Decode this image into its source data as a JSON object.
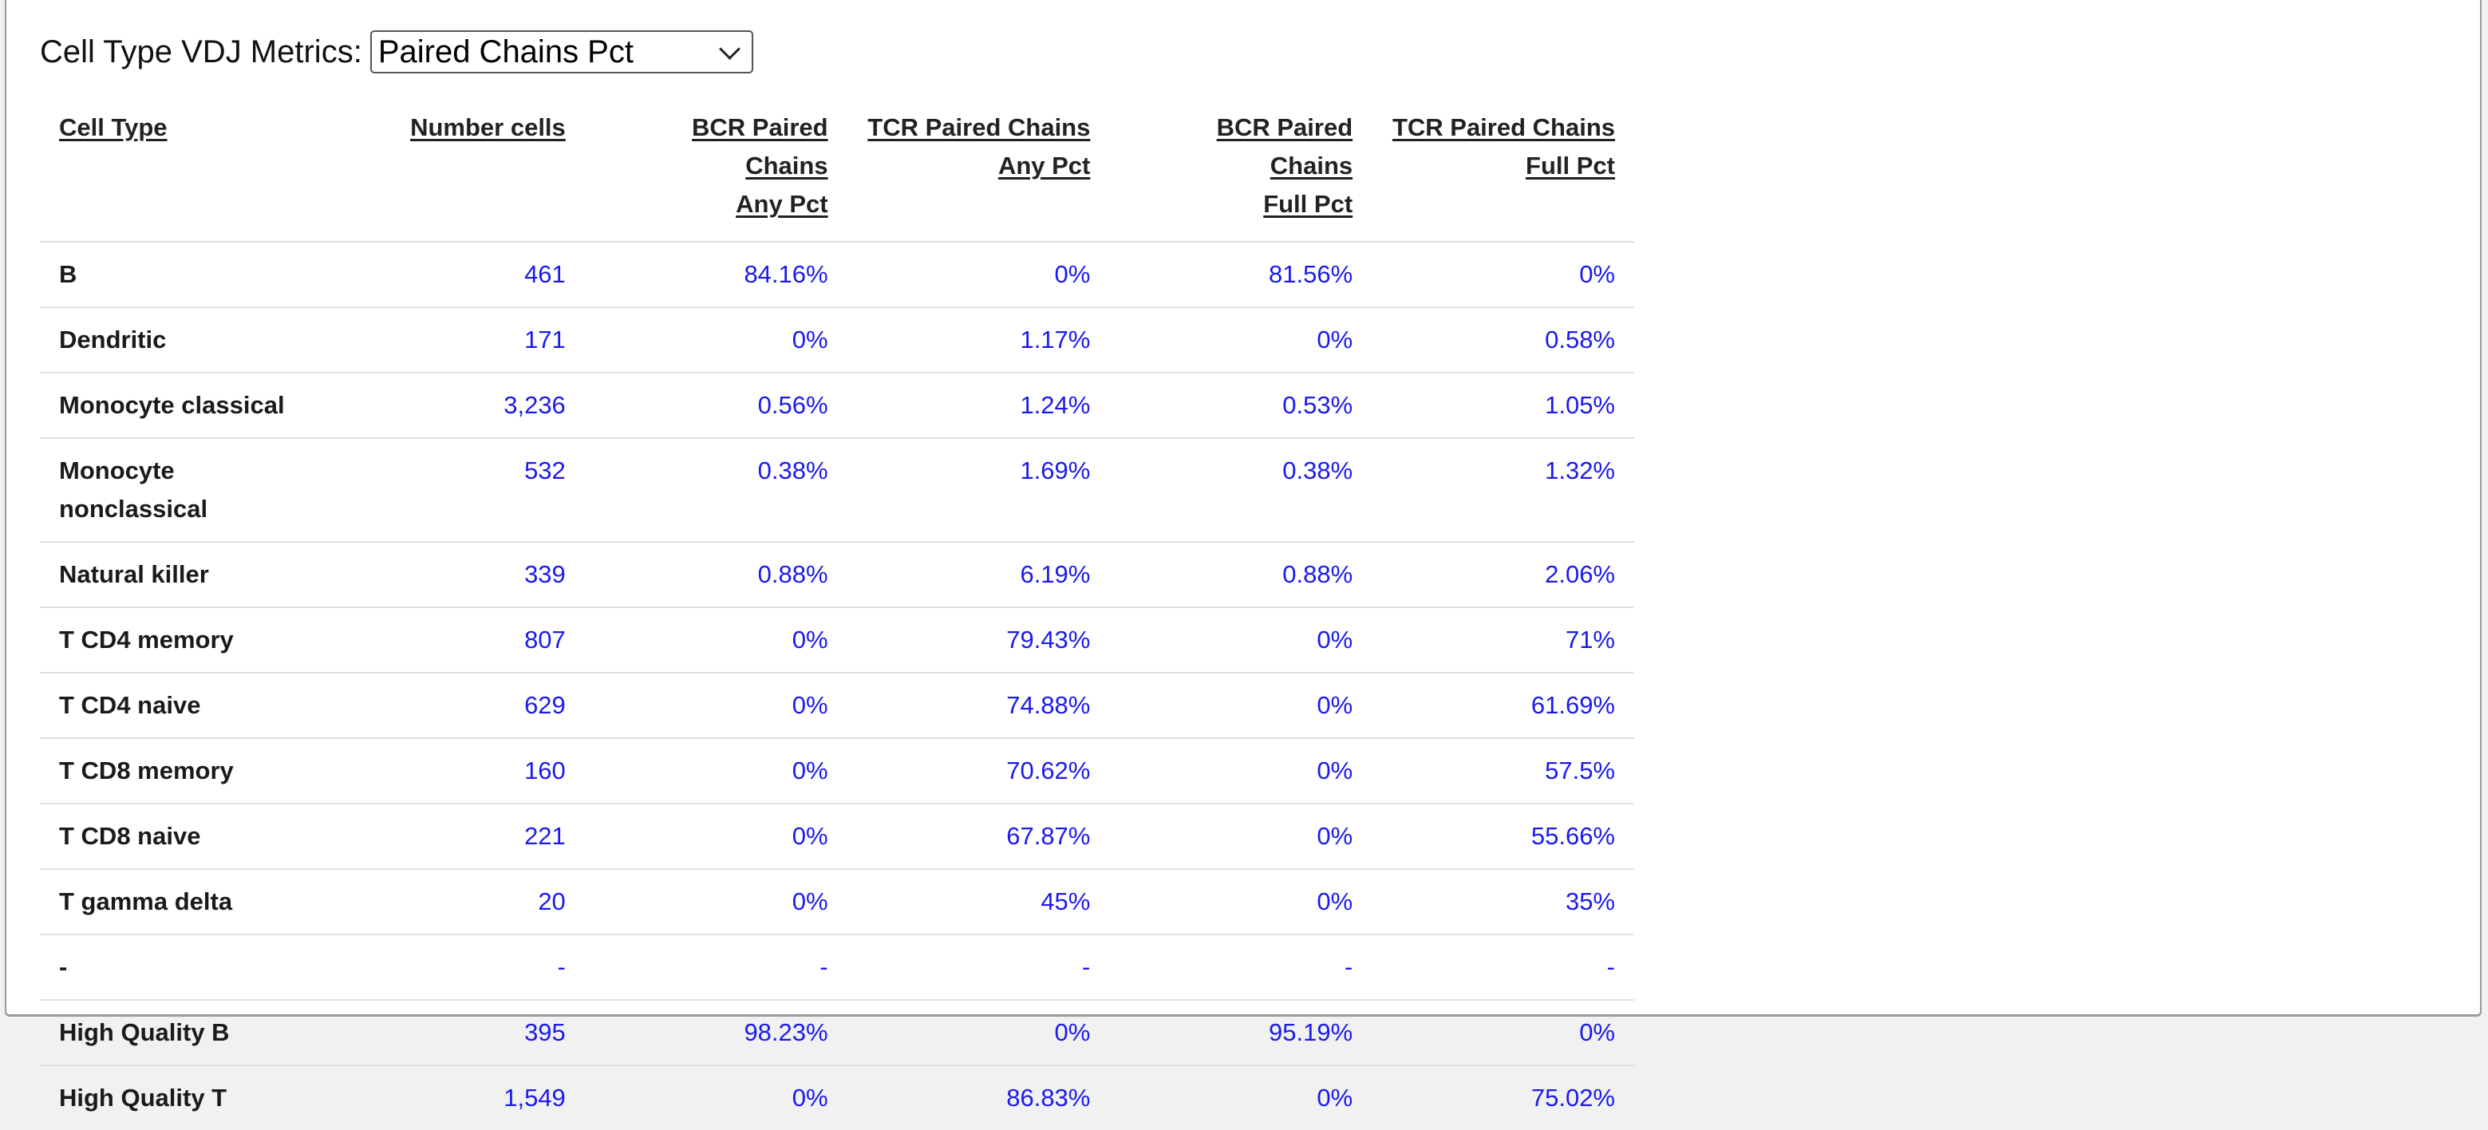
{
  "metric_selector": {
    "label": "Cell Type VDJ Metrics:",
    "selected": "Paired Chains Pct"
  },
  "table": {
    "headers": [
      {
        "line1": "Cell Type",
        "line2": ""
      },
      {
        "line1": "Number cells",
        "line2": ""
      },
      {
        "line1": "BCR Paired Chains",
        "line2": "Any Pct"
      },
      {
        "line1": "TCR Paired Chains",
        "line2": "Any Pct"
      },
      {
        "line1": "BCR Paired Chains",
        "line2": "Full Pct"
      },
      {
        "line1": "TCR Paired Chains",
        "line2": "Full Pct"
      }
    ],
    "rows": [
      {
        "type": "B",
        "cells": "461",
        "bcr_any": "84.16%",
        "tcr_any": "0%",
        "bcr_full": "81.56%",
        "tcr_full": "0%"
      },
      {
        "type": "Dendritic",
        "cells": "171",
        "bcr_any": "0%",
        "tcr_any": "1.17%",
        "bcr_full": "0%",
        "tcr_full": "0.58%"
      },
      {
        "type": "Monocyte classical",
        "cells": "3,236",
        "bcr_any": "0.56%",
        "tcr_any": "1.24%",
        "bcr_full": "0.53%",
        "tcr_full": "1.05%"
      },
      {
        "type": "Monocyte nonclassical",
        "cells": "532",
        "bcr_any": "0.38%",
        "tcr_any": "1.69%",
        "bcr_full": "0.38%",
        "tcr_full": "1.32%"
      },
      {
        "type": "Natural killer",
        "cells": "339",
        "bcr_any": "0.88%",
        "tcr_any": "6.19%",
        "bcr_full": "0.88%",
        "tcr_full": "2.06%"
      },
      {
        "type": "T CD4 memory",
        "cells": "807",
        "bcr_any": "0%",
        "tcr_any": "79.43%",
        "bcr_full": "0%",
        "tcr_full": "71%"
      },
      {
        "type": "T CD4 naive",
        "cells": "629",
        "bcr_any": "0%",
        "tcr_any": "74.88%",
        "bcr_full": "0%",
        "tcr_full": "61.69%"
      },
      {
        "type": "T CD8 memory",
        "cells": "160",
        "bcr_any": "0%",
        "tcr_any": "70.62%",
        "bcr_full": "0%",
        "tcr_full": "57.5%"
      },
      {
        "type": "T CD8 naive",
        "cells": "221",
        "bcr_any": "0%",
        "tcr_any": "67.87%",
        "bcr_full": "0%",
        "tcr_full": "55.66%"
      },
      {
        "type": "T gamma delta",
        "cells": "20",
        "bcr_any": "0%",
        "tcr_any": "45%",
        "bcr_full": "0%",
        "tcr_full": "35%"
      },
      {
        "type": "-",
        "cells": "-",
        "bcr_any": "-",
        "tcr_any": "-",
        "bcr_full": "-",
        "tcr_full": "-"
      },
      {
        "type": "High Quality B",
        "cells": "395",
        "bcr_any": "98.23%",
        "tcr_any": "0%",
        "bcr_full": "95.19%",
        "tcr_full": "0%"
      },
      {
        "type": "High Quality T",
        "cells": "1,549",
        "bcr_any": "0%",
        "tcr_any": "86.83%",
        "bcr_full": "0%",
        "tcr_full": "75.02%"
      }
    ]
  },
  "colors": {
    "value_text": "#1a1aee",
    "label_text": "#1a1a1a"
  }
}
